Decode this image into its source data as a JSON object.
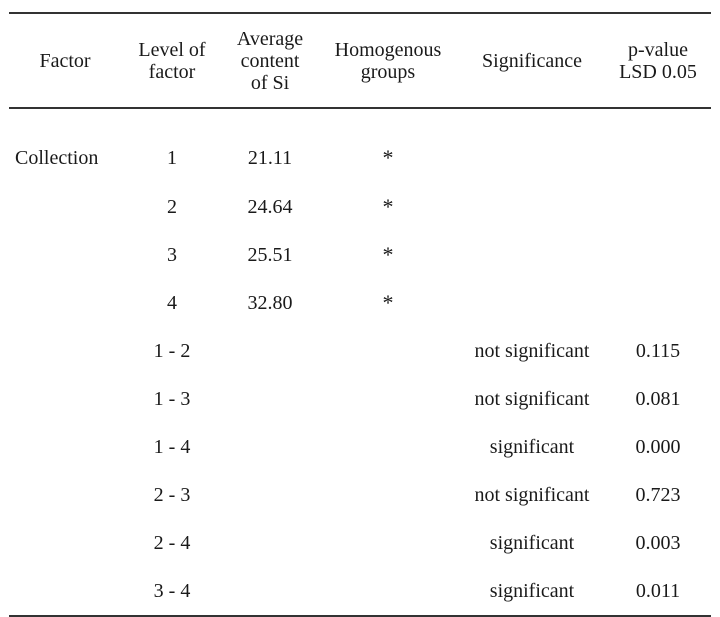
{
  "table": {
    "headers": [
      "Factor",
      "Level of factor",
      "Average content of Si",
      "Homogenous groups",
      "Significance",
      "p-value LSD 0.05"
    ],
    "header_lines": [
      [
        "Factor"
      ],
      [
        "Level of",
        "factor"
      ],
      [
        "Average",
        "content",
        "of Si"
      ],
      [
        "Homogenous",
        "groups"
      ],
      [
        "Significance"
      ],
      [
        "p-value",
        "LSD 0.05"
      ]
    ],
    "rows": [
      {
        "factor": "Collection",
        "level": "1",
        "average": "21.11",
        "groups": "*",
        "significance": "",
        "p_value": ""
      },
      {
        "factor": "",
        "level": "2",
        "average": "24.64",
        "groups": "*",
        "significance": "",
        "p_value": ""
      },
      {
        "factor": "",
        "level": "3",
        "average": "25.51",
        "groups": "*",
        "significance": "",
        "p_value": ""
      },
      {
        "factor": "",
        "level": "4",
        "average": "32.80",
        "groups": "*",
        "significance": "",
        "p_value": ""
      },
      {
        "factor": "",
        "level": "1 - 2",
        "average": "",
        "groups": "",
        "significance": "not significant",
        "p_value": "0.115"
      },
      {
        "factor": "",
        "level": "1 - 3",
        "average": "",
        "groups": "",
        "significance": "not significant",
        "p_value": "0.081"
      },
      {
        "factor": "",
        "level": "1 - 4",
        "average": "",
        "groups": "",
        "significance": "significant",
        "p_value": "0.000"
      },
      {
        "factor": "",
        "level": "2 - 3",
        "average": "",
        "groups": "",
        "significance": "not significant",
        "p_value": "0.723"
      },
      {
        "factor": "",
        "level": "2 - 4",
        "average": "",
        "groups": "",
        "significance": "significant",
        "p_value": "0.003"
      },
      {
        "factor": "",
        "level": "3 - 4",
        "average": "",
        "groups": "",
        "significance": "significant",
        "p_value": "0.011"
      }
    ]
  }
}
